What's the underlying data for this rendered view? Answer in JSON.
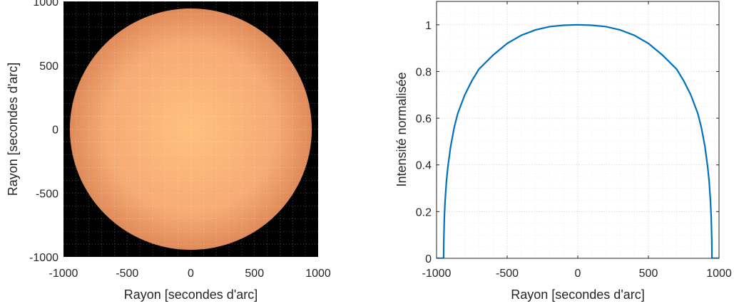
{
  "chart_data": [
    {
      "type": "heatmap",
      "description_kind": "image",
      "xlabel": "Rayon [secondes d'arc]",
      "ylabel": "Rayon [secondes d'arc]",
      "xlim": [
        -1000,
        1000
      ],
      "ylim": [
        -1000,
        1000
      ],
      "xticks": [
        "-1000",
        "-500",
        "0",
        "500",
        "1000"
      ],
      "yticks": [
        "1000",
        "500",
        "0",
        "-500",
        "-1000"
      ],
      "grid": true,
      "disk_radius": 950,
      "background_color": "#000000",
      "disk_center_color": "#ffc07e",
      "disk_limb_color": "#df8a5a"
    },
    {
      "type": "line",
      "xlabel": "Rayon [secondes d'arc]",
      "ylabel": "Intensité normalisée",
      "xlim": [
        -1000,
        1000
      ],
      "ylim": [
        0,
        1.1
      ],
      "xticks": [
        "-1000",
        "-500",
        "0",
        "500",
        "1000"
      ],
      "yticks": [
        "0",
        "0.2",
        "0.4",
        "0.6",
        "0.8",
        "1"
      ],
      "grid": true,
      "series": [
        {
          "color": "#0072bd",
          "x": [
            -1000,
            -975,
            -950,
            -949,
            -945,
            -940,
            -930,
            -920,
            -900,
            -875,
            -850,
            -800,
            -750,
            -700,
            -600,
            -500,
            -400,
            -300,
            -200,
            -100,
            0,
            100,
            200,
            300,
            400,
            500,
            600,
            700,
            750,
            800,
            850,
            875,
            900,
            920,
            930,
            940,
            945,
            949,
            950,
            975,
            1000
          ],
          "y": [
            0,
            0,
            0,
            0.07,
            0.17,
            0.24,
            0.33,
            0.39,
            0.48,
            0.56,
            0.62,
            0.7,
            0.76,
            0.81,
            0.87,
            0.92,
            0.955,
            0.978,
            0.992,
            0.998,
            1.0,
            0.998,
            0.992,
            0.978,
            0.955,
            0.92,
            0.87,
            0.81,
            0.76,
            0.7,
            0.62,
            0.56,
            0.48,
            0.39,
            0.33,
            0.24,
            0.17,
            0.07,
            0,
            0,
            0
          ]
        }
      ]
    }
  ]
}
